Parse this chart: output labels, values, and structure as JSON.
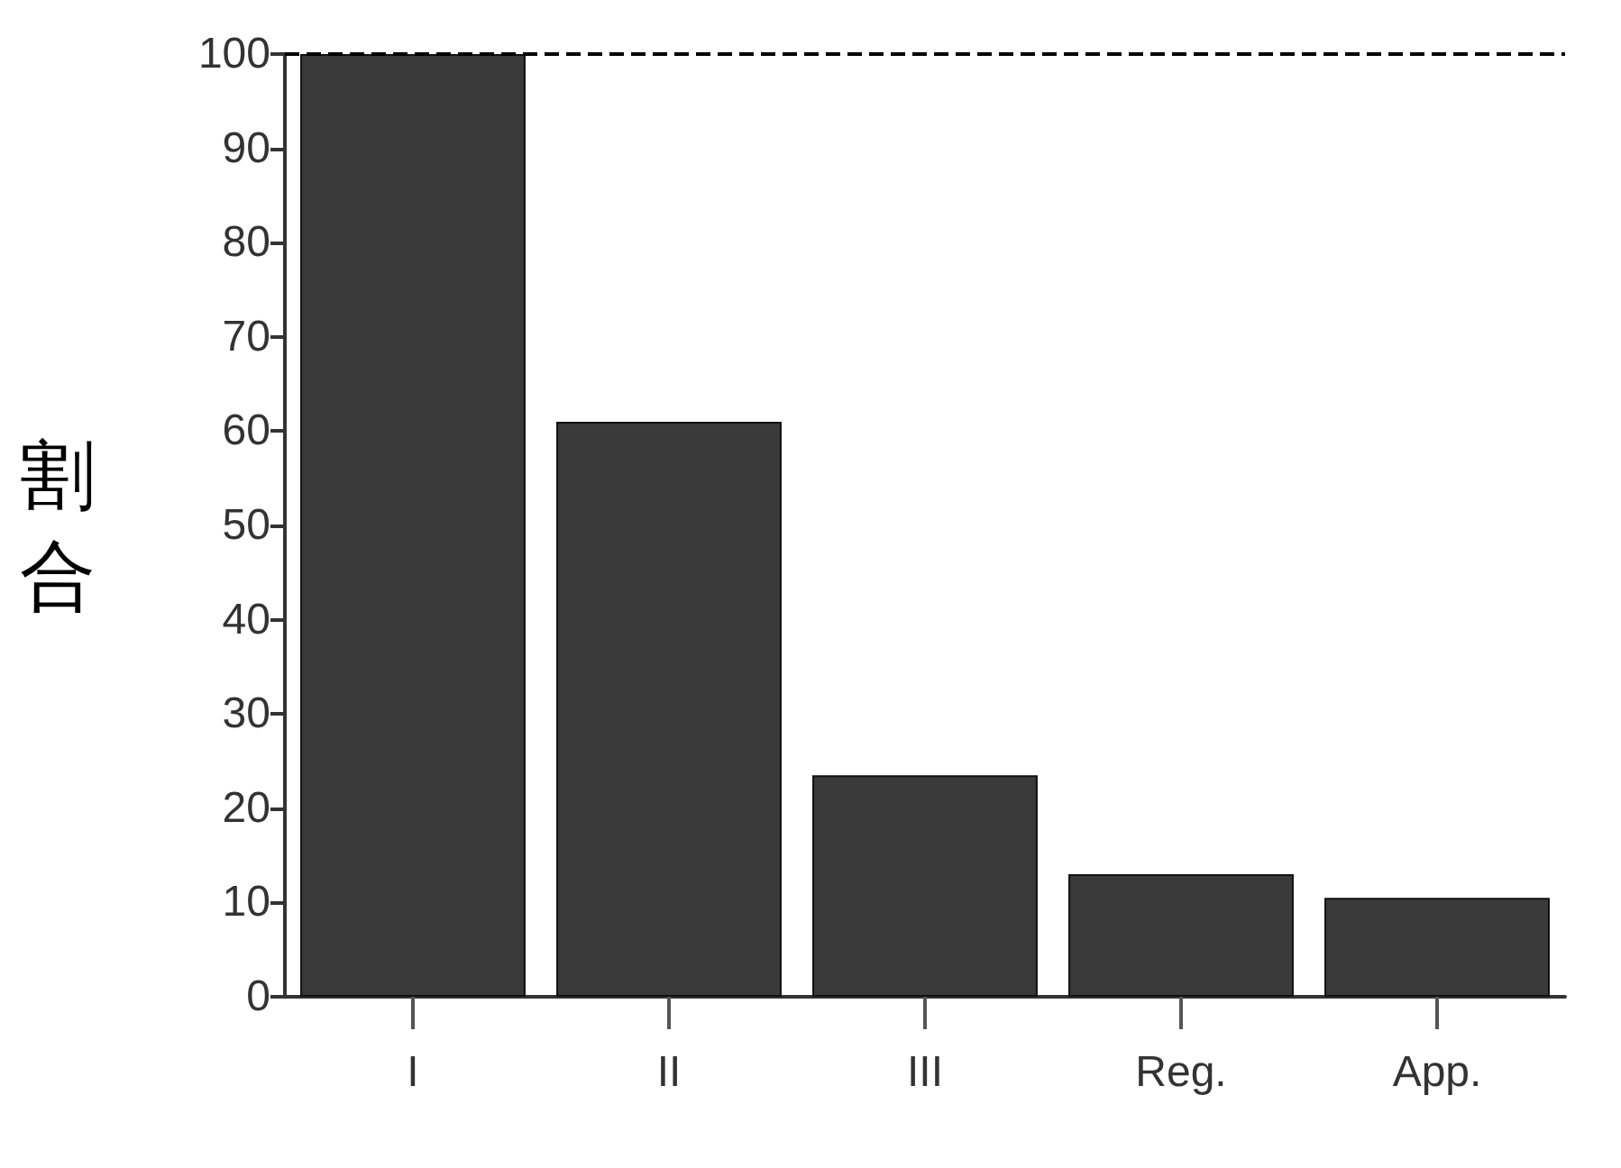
{
  "chart_data": {
    "type": "bar",
    "ylabel": "割合",
    "categories": [
      "I",
      "II",
      "III",
      "Reg.",
      "App."
    ],
    "values": [
      100,
      61,
      23.5,
      13,
      10.5
    ],
    "color": "#3a3a3a",
    "ylim": [
      0,
      100
    ],
    "yticks": [
      0,
      10,
      20,
      30,
      40,
      50,
      60,
      70,
      80,
      90,
      100
    ],
    "grid": false,
    "ref_lines": [
      {
        "axis": "y",
        "value": 100,
        "label": null,
        "color": "#000000",
        "line_style": "dashed"
      }
    ]
  }
}
